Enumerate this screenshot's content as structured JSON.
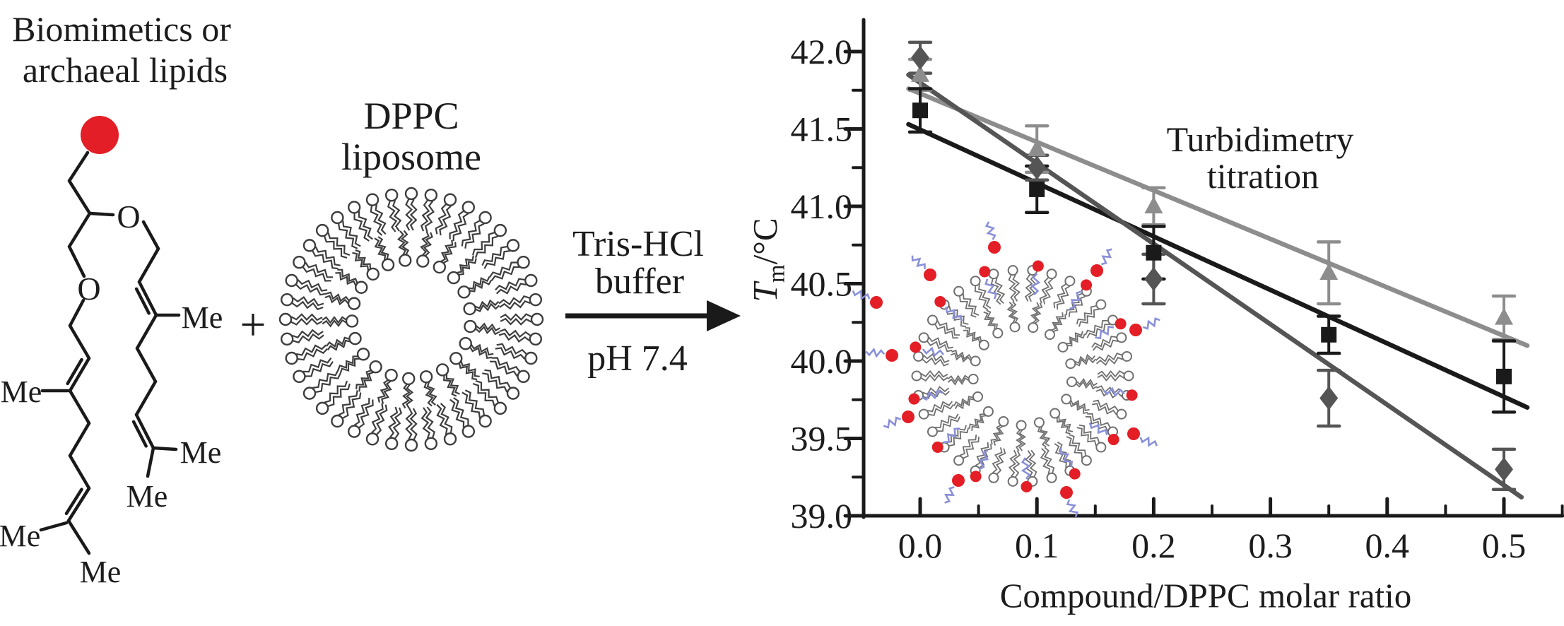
{
  "scheme": {
    "lipid_title_line1": "Biomimetics or",
    "lipid_title_line2": "archaeal lipids",
    "plus": "+",
    "liposome_title_line1": "DPPC",
    "liposome_title_line2": "liposome",
    "arrow_top_line1": "Tris-HCl",
    "arrow_top_line2": "buffer",
    "arrow_bottom": "pH 7.4",
    "structure": {
      "oxygen_label": "O",
      "methyl_label": "Me",
      "head_color": "#e41e26",
      "bond_color": "#1a1a1a",
      "tail_color": "#8a90d8"
    }
  },
  "chart_data": {
    "type": "scatter",
    "annotation_line1": "Turbidimetry",
    "annotation_line2": "titration",
    "xlabel": "Compound/DPPC molar ratio",
    "ylabel": {
      "symbol": "T",
      "subscript": "m",
      "rest": "/°C"
    },
    "xlim": [
      -0.05,
      0.55
    ],
    "ylim": [
      39.0,
      42.2
    ],
    "grid": false,
    "legend": "none",
    "x_major_ticks": [
      0.0,
      0.1,
      0.2,
      0.3,
      0.4,
      0.5
    ],
    "x_major_labels": [
      "0.0",
      "0.1",
      "0.2",
      "0.3",
      "0.4",
      "0.5"
    ],
    "x_minor_ticks": [
      0.05,
      0.15,
      0.25,
      0.35,
      0.45,
      0.55
    ],
    "y_major_ticks": [
      42.0,
      41.5,
      41.0,
      40.5,
      40.0,
      39.5,
      39.0
    ],
    "y_major_labels": [
      "42.0",
      "41.5",
      "41.0",
      "40.5",
      "40.0",
      "39.5",
      "39.0"
    ],
    "y_minor_ticks": [
      41.75,
      41.25,
      40.75,
      40.25,
      39.75,
      39.25
    ],
    "x": [
      0.0,
      0.1,
      0.2,
      0.35,
      0.5
    ],
    "series": [
      {
        "name": "triangle-series",
        "marker": "triangle",
        "color": "#8d8d8d",
        "values": [
          41.85,
          41.37,
          41.0,
          40.57,
          40.28
        ],
        "errors": [
          0.1,
          0.15,
          0.12,
          0.2,
          0.14
        ],
        "fit_line": {
          "x1": -0.01,
          "t1": 41.76,
          "x2": 0.52,
          "t2": 40.1
        }
      },
      {
        "name": "square-series",
        "marker": "square",
        "color": "#1a1a1a",
        "values": [
          41.62,
          41.11,
          40.7,
          40.17,
          39.9
        ],
        "errors": [
          0.14,
          0.15,
          0.17,
          0.12,
          0.23
        ],
        "fit_line": {
          "x1": -0.01,
          "t1": 41.53,
          "x2": 0.52,
          "t2": 39.7
        }
      },
      {
        "name": "diamond-series",
        "marker": "diamond",
        "color": "#555555",
        "values": [
          41.96,
          41.25,
          40.53,
          39.76,
          39.3
        ],
        "errors": [
          0.1,
          0.08,
          0.16,
          0.18,
          0.13
        ],
        "fit_line": {
          "x1": -0.01,
          "t1": 41.85,
          "x2": 0.515,
          "t2": 39.12
        }
      }
    ]
  }
}
